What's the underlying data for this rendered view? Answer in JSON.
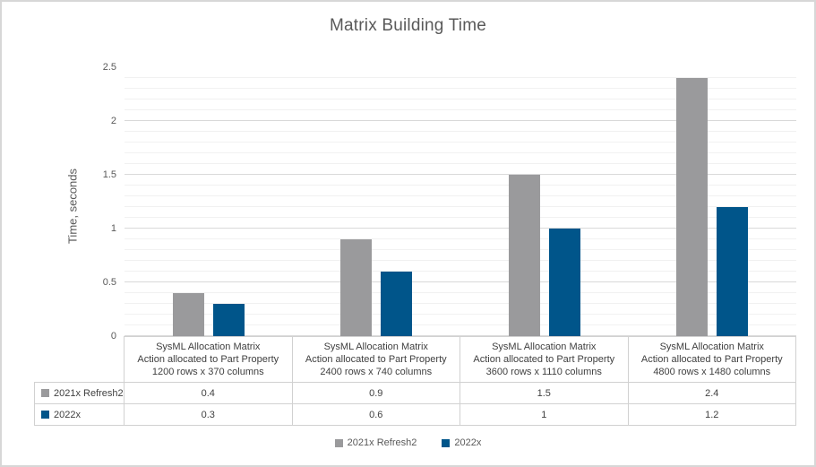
{
  "chart_data": {
    "type": "bar",
    "title": "Matrix Building Time",
    "xlabel": "",
    "ylabel": "Time, seconds",
    "ylim": [
      0,
      2.5
    ],
    "yticks": [
      0,
      0.5,
      1,
      1.5,
      2,
      2.5
    ],
    "minor_grid_step": 0.1,
    "grid": true,
    "legend_position": "bottom",
    "data_table_shown": true,
    "categories": [
      "SysML Allocation Matrix\nAction allocated to Part Property\n1200 rows x 370 columns",
      "SysML Allocation Matrix\nAction allocated to Part Property\n2400 rows x 740 columns",
      "SysML Allocation Matrix\nAction allocated to Part Property\n3600 rows x 1110 columns",
      "SysML Allocation Matrix\nAction allocated to Part Property\n4800 rows x 1480 columns"
    ],
    "series": [
      {
        "name": "2021x Refresh2",
        "color": "#9A9A9C",
        "values": [
          0.4,
          0.9,
          1.5,
          2.4
        ]
      },
      {
        "name": "2022x",
        "color": "#00558A",
        "values": [
          0.3,
          0.6,
          1,
          1.2
        ]
      }
    ]
  },
  "colors": {
    "title_text": "#595959",
    "axis_text": "#595959",
    "table_text": "#404040",
    "major_gridline": "#D9D9D9",
    "minor_gridline": "#F1F1F1",
    "table_border": "#D1D1D1",
    "chart_border": "#D7D7D7"
  }
}
